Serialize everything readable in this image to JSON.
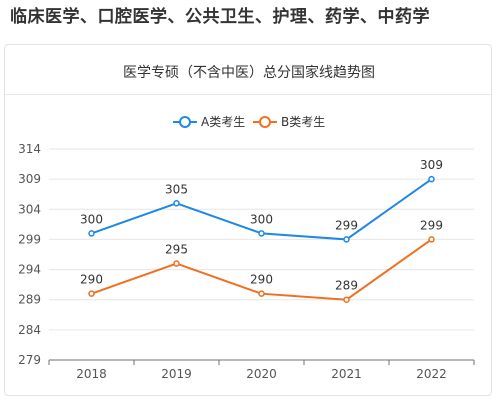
{
  "page": {
    "heading": "临床医学、口腔医学、公共卫生、护理、药学、中药学"
  },
  "chart_data": {
    "type": "line",
    "title": "医学专硕（不含中医）总分国家线趋势图",
    "xlabel": "",
    "ylabel": "",
    "categories": [
      "2018",
      "2019",
      "2020",
      "2021",
      "2022"
    ],
    "y_ticks": [
      279,
      284,
      289,
      294,
      299,
      304,
      309,
      314
    ],
    "ylim": [
      279,
      314
    ],
    "grid": true,
    "legend_position": "top-center",
    "series": [
      {
        "name": "A类考生",
        "color": "#1e88e5",
        "values": [
          300,
          305,
          300,
          299,
          309
        ]
      },
      {
        "name": "B类考生",
        "color": "#f07020",
        "values": [
          290,
          295,
          290,
          289,
          299
        ]
      }
    ]
  }
}
